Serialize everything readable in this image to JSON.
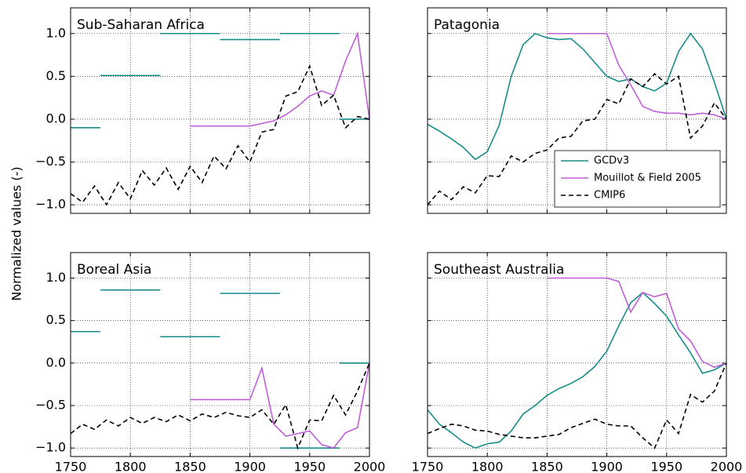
{
  "ylabel": "Normalized values (-)",
  "chart_data": [
    {
      "type": "line",
      "title": "Sub-Saharan Africa",
      "xlim": [
        1750,
        2000
      ],
      "ylim": [
        -1.1,
        1.3
      ],
      "grid": true,
      "xticks": [
        1750,
        1800,
        1850,
        1900,
        1950,
        2000
      ],
      "yticks": [
        {
          "value": -1,
          "label": "−1.0"
        },
        {
          "value": -0.5,
          "label": "−0.5"
        },
        {
          "value": 0,
          "label": "0.0"
        },
        {
          "value": 0.5,
          "label": "0.5"
        },
        {
          "value": 1,
          "label": "1.0"
        }
      ],
      "x": [
        1750,
        1760,
        1770,
        1780,
        1790,
        1800,
        1810,
        1820,
        1830,
        1840,
        1850,
        1860,
        1870,
        1880,
        1890,
        1900,
        1910,
        1920,
        1930,
        1940,
        1950,
        1960,
        1970,
        1980,
        1990,
        2000
      ],
      "series": [
        {
          "color": "#178c8c",
          "x": [
            1750,
            1775,
            1775,
            1775,
            1825,
            1825,
            1825,
            1875,
            1875,
            1875,
            1925,
            1925,
            1925,
            1975,
            1975,
            1975,
            2000
          ],
          "values": [
            -0.1,
            -0.1,
            null,
            0.51,
            0.51,
            null,
            1,
            1,
            null,
            0.93,
            0.93,
            null,
            1,
            1,
            null,
            0,
            0
          ]
        },
        {
          "color": "#bf5fd8",
          "values": [
            null,
            null,
            null,
            null,
            null,
            null,
            null,
            null,
            null,
            null,
            -0.08,
            -0.08,
            -0.08,
            -0.08,
            -0.08,
            -0.08,
            -0.05,
            -0.02,
            0.05,
            0.15,
            0.27,
            0.33,
            0.28,
            0.68,
            1,
            0
          ]
        },
        {
          "color": "#000000",
          "dash": true,
          "values": [
            -0.87,
            -0.97,
            -0.78,
            -1,
            -0.74,
            -0.93,
            -0.6,
            -0.77,
            -0.57,
            -0.82,
            -0.55,
            -0.74,
            -0.43,
            -0.58,
            -0.31,
            -0.5,
            -0.15,
            -0.12,
            0.27,
            0.32,
            0.62,
            0.16,
            0.28,
            -0.1,
            0.03,
            0
          ]
        }
      ]
    },
    {
      "type": "line",
      "title": "Patagonia",
      "xlim": [
        1750,
        2000
      ],
      "ylim": [
        -1.1,
        1.3
      ],
      "grid": true,
      "legend": "lower right",
      "xticks": [
        1750,
        1800,
        1850,
        1900,
        1950,
        2000
      ],
      "yticks": [
        -1,
        -0.5,
        0,
        0.5,
        1
      ],
      "x": [
        1750,
        1760,
        1770,
        1780,
        1790,
        1800,
        1810,
        1820,
        1830,
        1840,
        1850,
        1860,
        1870,
        1880,
        1890,
        1900,
        1910,
        1920,
        1930,
        1940,
        1950,
        1960,
        1970,
        1980,
        1990,
        2000
      ],
      "series": [
        {
          "name": "GCDv3",
          "color": "#178c8c",
          "values": [
            -0.06,
            -0.14,
            -0.23,
            -0.33,
            -0.47,
            -0.38,
            -0.07,
            0.5,
            0.87,
            1,
            0.95,
            0.93,
            0.94,
            0.82,
            0.66,
            0.5,
            0.44,
            0.47,
            0.38,
            0.33,
            0.42,
            0.79,
            1,
            0.82,
            0.43,
            0
          ]
        },
        {
          "name": "Mouillot & Field 2005",
          "color": "#bf5fd8",
          "values": [
            null,
            null,
            null,
            null,
            null,
            null,
            null,
            null,
            null,
            null,
            1,
            1,
            1,
            1,
            1,
            1,
            0.63,
            0.4,
            0.15,
            0.09,
            0.07,
            0.07,
            0.05,
            0.07,
            0.05,
            0
          ]
        },
        {
          "name": "CMIP6",
          "color": "#000000",
          "dash": true,
          "values": [
            -1,
            -0.84,
            -0.94,
            -0.79,
            -0.86,
            -0.66,
            -0.67,
            -0.43,
            -0.5,
            -0.4,
            -0.36,
            -0.22,
            -0.2,
            -0.02,
            0,
            0.23,
            0.18,
            0.47,
            0.38,
            0.53,
            0.41,
            0.5,
            -0.22,
            -0.08,
            0.19,
            0
          ]
        }
      ]
    },
    {
      "type": "line",
      "title": "Boreal Asia",
      "xlim": [
        1750,
        2000
      ],
      "ylim": [
        -1.1,
        1.3
      ],
      "grid": true,
      "xticks": [
        1750,
        1800,
        1850,
        1900,
        1950,
        2000
      ],
      "yticks": [
        {
          "value": -1,
          "label": "−1.0"
        },
        {
          "value": -0.5,
          "label": "−0.5"
        },
        {
          "value": 0,
          "label": "0.0"
        },
        {
          "value": 0.5,
          "label": "0.5"
        },
        {
          "value": 1,
          "label": "1.0"
        }
      ],
      "x": [
        1750,
        1760,
        1770,
        1780,
        1790,
        1800,
        1810,
        1820,
        1830,
        1840,
        1850,
        1860,
        1870,
        1880,
        1890,
        1900,
        1910,
        1920,
        1930,
        1940,
        1950,
        1960,
        1970,
        1980,
        1990,
        2000
      ],
      "series": [
        {
          "color": "#178c8c",
          "x": [
            1750,
            1775,
            1775,
            1775,
            1825,
            1825,
            1825,
            1875,
            1875,
            1875,
            1925,
            1925,
            1925,
            1975,
            1975,
            1975,
            2000
          ],
          "values": [
            0.37,
            0.37,
            null,
            0.86,
            0.86,
            null,
            0.31,
            0.31,
            null,
            0.82,
            0.82,
            null,
            -1,
            -1,
            null,
            0,
            0
          ]
        },
        {
          "color": "#bf5fd8",
          "values": [
            null,
            null,
            null,
            null,
            null,
            null,
            null,
            null,
            null,
            null,
            -0.43,
            -0.43,
            -0.43,
            -0.43,
            -0.43,
            -0.43,
            -0.06,
            -0.72,
            -0.86,
            -0.83,
            -0.8,
            -0.96,
            -1,
            -0.82,
            -0.76,
            0
          ]
        },
        {
          "color": "#000000",
          "dash": true,
          "values": [
            -0.83,
            -0.72,
            -0.78,
            -0.67,
            -0.74,
            -0.64,
            -0.71,
            -0.64,
            -0.69,
            -0.61,
            -0.68,
            -0.6,
            -0.64,
            -0.58,
            -0.62,
            -0.64,
            -0.55,
            -0.72,
            -0.49,
            -1,
            -0.67,
            -0.68,
            -0.38,
            -0.61,
            -0.33,
            0
          ]
        }
      ]
    },
    {
      "type": "line",
      "title": "Southeast Australia",
      "xlim": [
        1750,
        2000
      ],
      "ylim": [
        -1.1,
        1.3
      ],
      "grid": true,
      "xticks": [
        1750,
        1800,
        1850,
        1900,
        1950,
        2000
      ],
      "yticks": [
        -1,
        -0.5,
        0,
        0.5,
        1
      ],
      "x": [
        1750,
        1760,
        1770,
        1780,
        1790,
        1800,
        1810,
        1820,
        1830,
        1840,
        1850,
        1860,
        1870,
        1880,
        1890,
        1900,
        1910,
        1920,
        1930,
        1940,
        1950,
        1960,
        1970,
        1980,
        1990,
        2000
      ],
      "series": [
        {
          "color": "#178c8c",
          "values": [
            -0.55,
            -0.72,
            -0.82,
            -0.93,
            -1,
            -0.95,
            -0.93,
            -0.8,
            -0.6,
            -0.5,
            -0.38,
            -0.3,
            -0.24,
            -0.16,
            -0.04,
            0.14,
            0.44,
            0.71,
            0.83,
            0.7,
            0.55,
            0.33,
            0.12,
            -0.12,
            -0.08,
            0
          ]
        },
        {
          "color": "#bf5fd8",
          "values": [
            null,
            null,
            null,
            null,
            null,
            null,
            null,
            null,
            null,
            null,
            1,
            1,
            1,
            1,
            1,
            1,
            0.96,
            0.6,
            0.83,
            0.78,
            0.82,
            0.4,
            0.26,
            0.02,
            -0.05,
            0
          ]
        },
        {
          "color": "#000000",
          "dash": true,
          "values": [
            -0.83,
            -0.77,
            -0.72,
            -0.74,
            -0.79,
            -0.8,
            -0.84,
            -0.86,
            -0.88,
            -0.88,
            -0.86,
            -0.84,
            -0.76,
            -0.71,
            -0.66,
            -0.72,
            -0.74,
            -0.74,
            -0.88,
            -1,
            -0.67,
            -0.83,
            -0.37,
            -0.46,
            -0.33,
            0
          ]
        }
      ]
    }
  ]
}
